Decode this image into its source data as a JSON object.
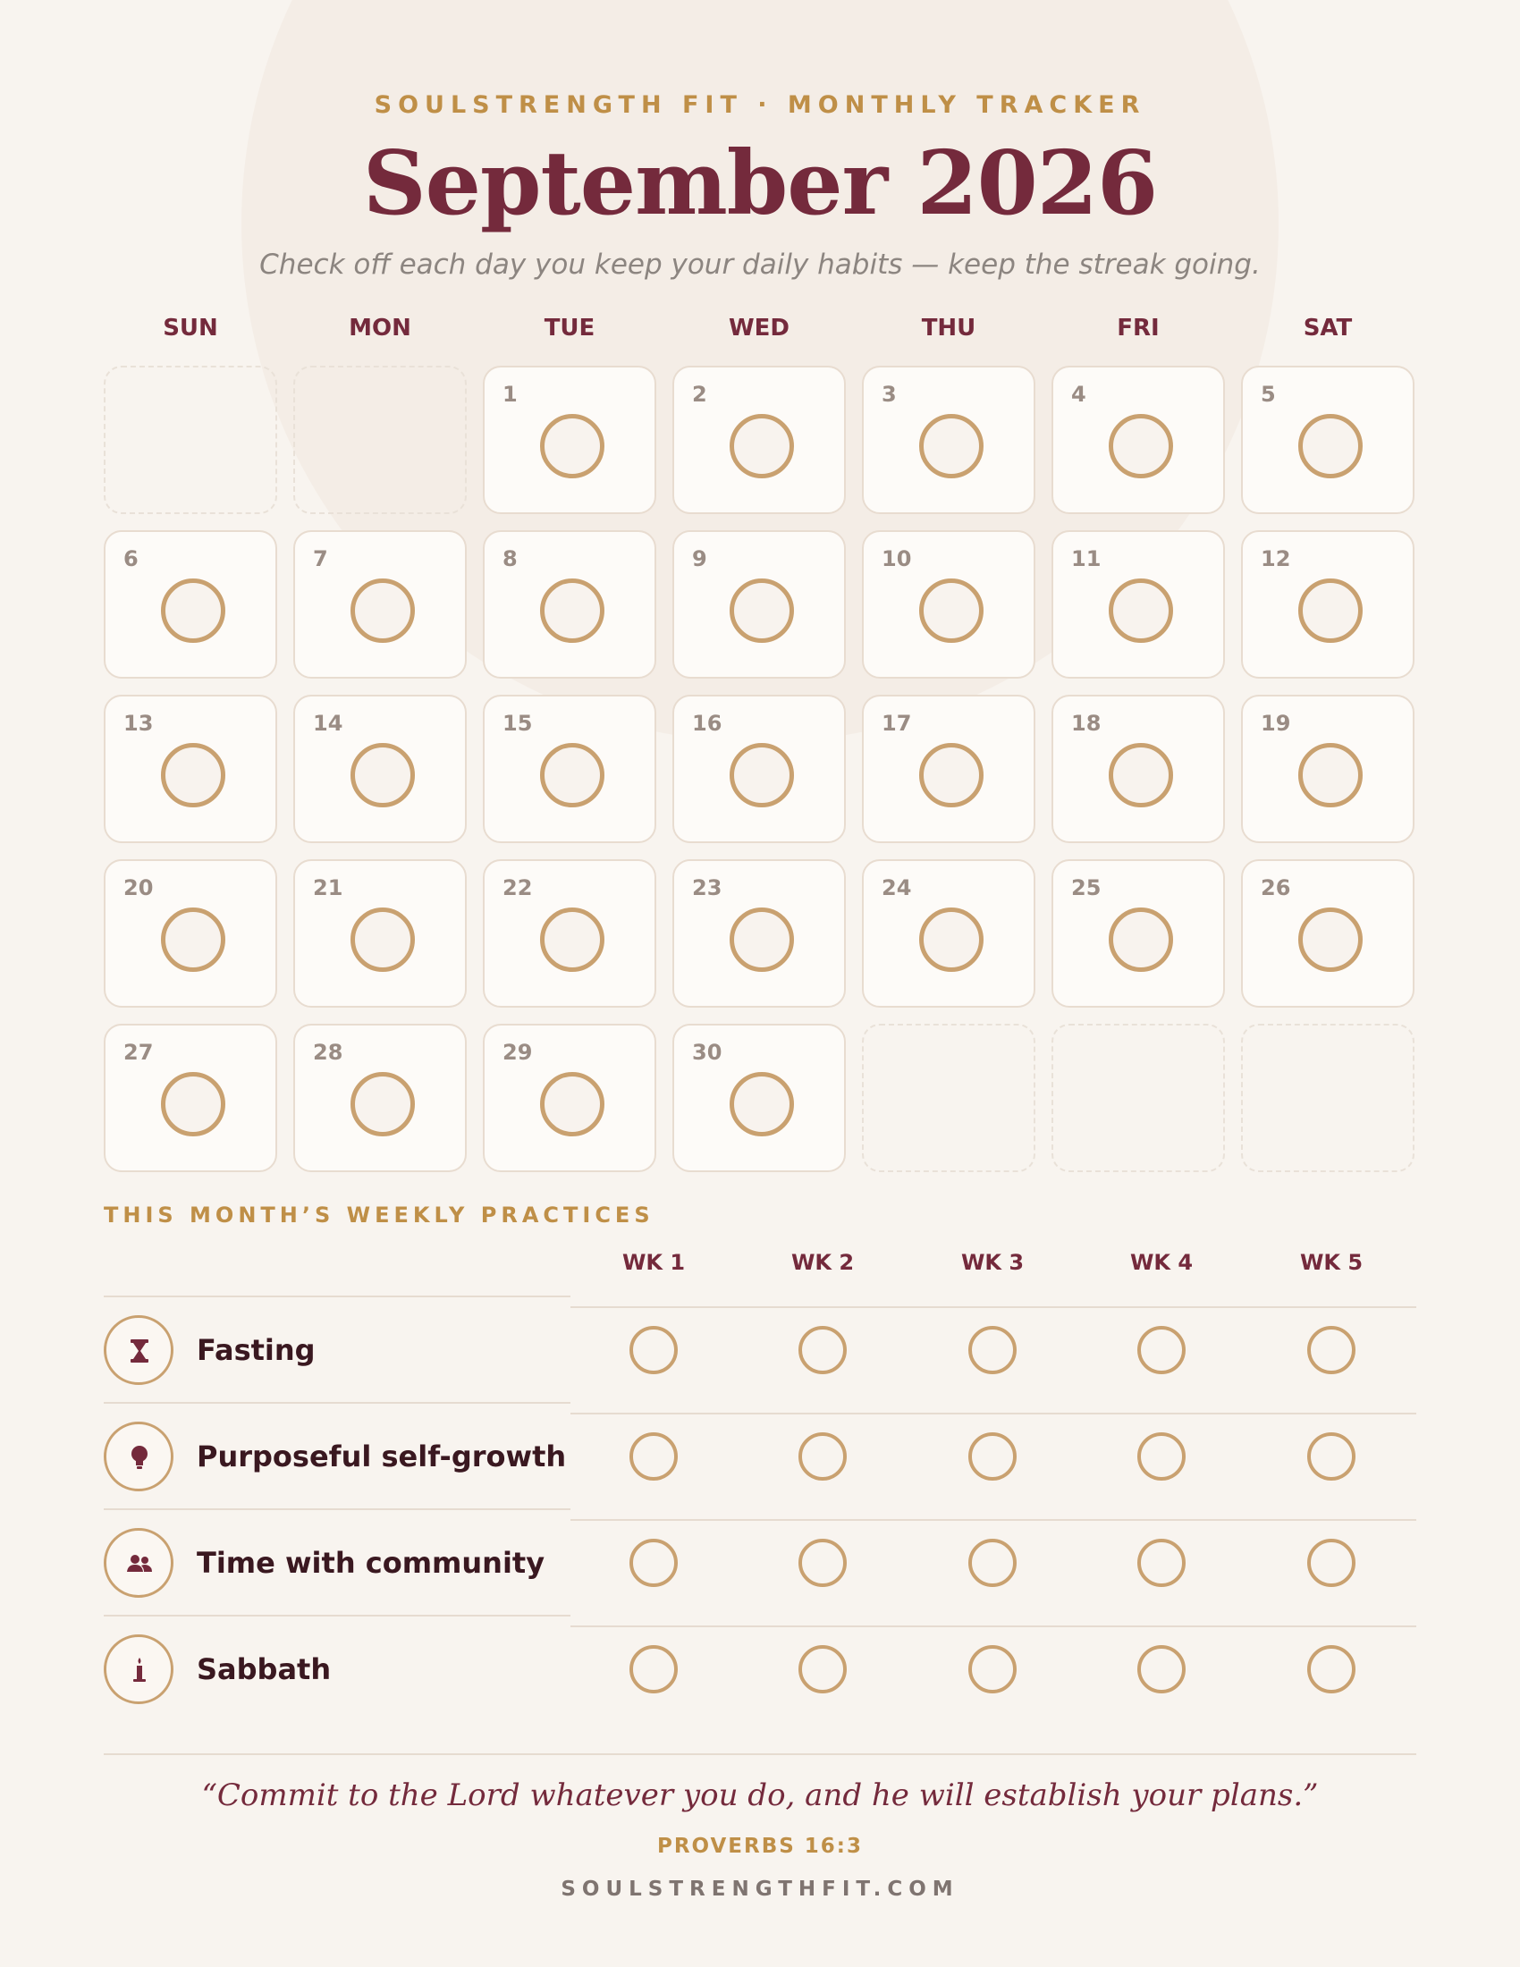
{
  "header": {
    "eyebrow": "SOULSTRENGTH FIT · MONTHLY TRACKER",
    "title": "September 2026",
    "subtitle": "Check off each day you keep your daily habits — keep the streak going."
  },
  "calendar": {
    "weekdays": [
      "SUN",
      "MON",
      "TUE",
      "WED",
      "THU",
      "FRI",
      "SAT"
    ],
    "weeks": [
      [
        "",
        "",
        "1",
        "2",
        "3",
        "4",
        "5"
      ],
      [
        "6",
        "7",
        "8",
        "9",
        "10",
        "11",
        "12"
      ],
      [
        "13",
        "14",
        "15",
        "16",
        "17",
        "18",
        "19"
      ],
      [
        "20",
        "21",
        "22",
        "23",
        "24",
        "25",
        "26"
      ],
      [
        "27",
        "28",
        "29",
        "30",
        "",
        "",
        ""
      ]
    ]
  },
  "weekly": {
    "section_title": "THIS MONTH’S WEEKLY PRACTICES",
    "weeks": [
      "WK 1",
      "WK 2",
      "WK 3",
      "WK 4",
      "WK 5"
    ],
    "practices": [
      {
        "label": "Fasting",
        "icon": "hourglass-icon"
      },
      {
        "label": "Purposeful self-growth",
        "icon": "lightbulb-icon"
      },
      {
        "label": "Time with community",
        "icon": "people-icon"
      },
      {
        "label": "Sabbath",
        "icon": "candle-icon"
      }
    ]
  },
  "footer": {
    "quote": "“Commit to the Lord whatever you do, and he will establish your plans.”",
    "reference": "PROVERBS 16:3",
    "website": "SOULSTRENGTHFIT.COM"
  },
  "colors": {
    "background": "#f8f4ef",
    "accent_gold": "#bf8f47",
    "ring_gold": "#c9a170",
    "burgundy": "#742a3c"
  }
}
